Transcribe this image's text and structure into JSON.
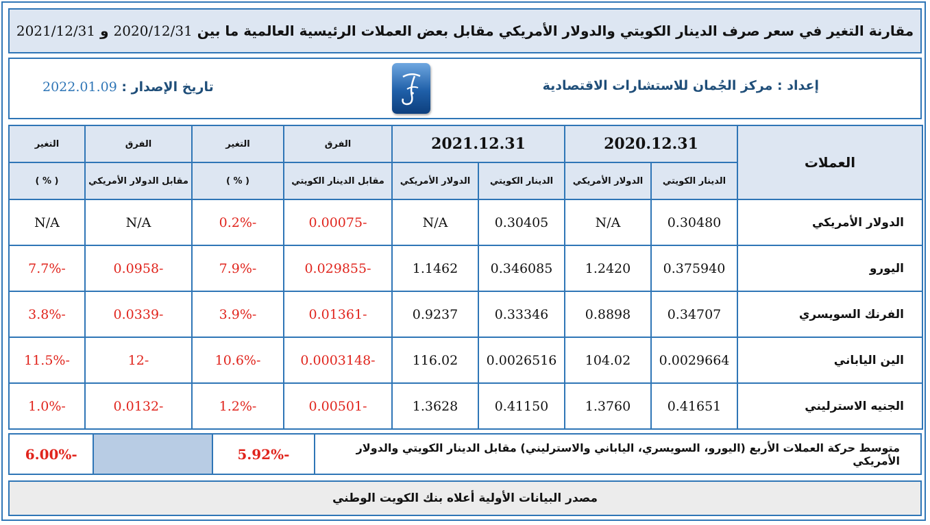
{
  "title": {
    "text_prefix": "مقارنة التغير في سعر صرف الدينار الكويتي والدولار الأمريكي مقابل بعض العملات الرئيسية العالمية ما بين",
    "date_from": "2020/12/31",
    "connector": "و",
    "date_to": "2021/12/31"
  },
  "info": {
    "prepared_label": "إعداد",
    "prepared_by": "مركز الجُمان للاستشارات الاقتصادية",
    "issue_label": "تاريخ الإصدار",
    "issue_date": "2022.01.09"
  },
  "table": {
    "header": {
      "currencies": "العملات",
      "date_2020": "2020.12.31",
      "date_2021": "2021.12.31",
      "kwd": "الدينار الكويتي",
      "usd": "الدولار الأمريكي",
      "diff": "الفرق",
      "vs_kwd": "مقابل الدينار الكويتي",
      "vs_usd": "مقابل الدولار الأمريكي",
      "change": "التغير",
      "pct": "( % )"
    },
    "rows": [
      {
        "name": "الدولار الأمريكي",
        "kwd_2020": "0.30480",
        "usd_2020": "N/A",
        "kwd_2021": "0.30405",
        "usd_2021": "N/A",
        "diff_kwd": "-0.00075",
        "chg_kwd": "-0.2%",
        "diff_usd": "N/A",
        "chg_usd": "N/A"
      },
      {
        "name": "اليورو",
        "kwd_2020": "0.375940",
        "usd_2020": "1.2420",
        "kwd_2021": "0.346085",
        "usd_2021": "1.1462",
        "diff_kwd": "-0.029855",
        "chg_kwd": "-7.9%",
        "diff_usd": "-0.0958",
        "chg_usd": "-7.7%"
      },
      {
        "name": "الفرنك السويسري",
        "kwd_2020": "0.34707",
        "usd_2020": "0.8898",
        "kwd_2021": "0.33346",
        "usd_2021": "0.9237",
        "diff_kwd": "-0.01361",
        "chg_kwd": "-3.9%",
        "diff_usd": "-0.0339",
        "chg_usd": "-3.8%"
      },
      {
        "name": "الين الياباني",
        "kwd_2020": "0.0029664",
        "usd_2020": "104.02",
        "kwd_2021": "0.0026516",
        "usd_2021": "116.02",
        "diff_kwd": "-0.0003148",
        "chg_kwd": "-10.6%",
        "diff_usd": "-12",
        "chg_usd": "-11.5%"
      },
      {
        "name": "الجنيه الاسترليني",
        "kwd_2020": "0.41651",
        "usd_2020": "1.3760",
        "kwd_2021": "0.41150",
        "usd_2021": "1.3628",
        "diff_kwd": "-0.00501",
        "chg_kwd": "-1.2%",
        "diff_usd": "-0.0132",
        "chg_usd": "-1.0%"
      }
    ]
  },
  "average": {
    "label": "متوسط حركة العملات الأربع (اليورو، السويسري، الياباني والاسترليني) مقابل الدينار الكويتي والدولار الأمريكي",
    "chg_kwd": "-5.92%",
    "chg_usd": "-6.00%"
  },
  "source": "مصدر البيانات الأولية أعلاه بنك الكويت الوطني",
  "colors": {
    "border": "#2e75b6",
    "header_bg": "#dde6f2",
    "negative": "#e0241c",
    "accent_text": "#1f4e79"
  }
}
